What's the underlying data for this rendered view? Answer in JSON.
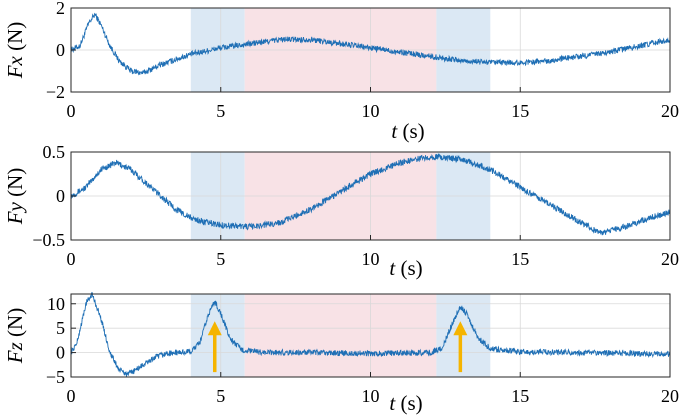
{
  "chart_data": [
    {
      "type": "line",
      "id": "fx",
      "ylabel": "Fx (N)",
      "ylabel_var": "Fx",
      "ylabel_unit": "(N)",
      "xlabel": "t (s)",
      "xlabel_var": "t",
      "xlabel_unit": "(s)",
      "xlim": [
        0,
        20
      ],
      "ylim": [
        -2,
        2
      ],
      "xticks": [
        "0",
        "5",
        "10",
        "15",
        "20"
      ],
      "yticks": [
        "2",
        "0",
        "-2"
      ],
      "grid": true,
      "series": [
        {
          "color": "#1f6fb5",
          "points": [
            [
              0,
              0
            ],
            [
              0.3,
              0.2
            ],
            [
              0.6,
              1.3
            ],
            [
              0.8,
              1.7
            ],
            [
              1.0,
              1.2
            ],
            [
              1.3,
              0.2
            ],
            [
              1.6,
              -0.5
            ],
            [
              2.0,
              -1.0
            ],
            [
              2.4,
              -1.1
            ],
            [
              3.0,
              -0.7
            ],
            [
              4.0,
              -0.2
            ],
            [
              5.0,
              0.1
            ],
            [
              6.0,
              0.3
            ],
            [
              7.0,
              0.5
            ],
            [
              8.0,
              0.5
            ],
            [
              9.0,
              0.3
            ],
            [
              10.0,
              0.1
            ],
            [
              11.0,
              -0.1
            ],
            [
              12.0,
              -0.3
            ],
            [
              13.0,
              -0.5
            ],
            [
              14.0,
              -0.6
            ],
            [
              15.0,
              -0.6
            ],
            [
              16.0,
              -0.5
            ],
            [
              17.0,
              -0.3
            ],
            [
              18.0,
              -0.1
            ],
            [
              19.0,
              0.2
            ],
            [
              20.0,
              0.5
            ]
          ]
        }
      ]
    },
    {
      "type": "line",
      "id": "fy",
      "ylabel": "Fy (N)",
      "ylabel_var": "Fy",
      "ylabel_unit": "(N)",
      "xlabel": "t (s)",
      "xlabel_var": "t",
      "xlabel_unit": "(s)",
      "xlim": [
        0,
        20
      ],
      "ylim": [
        -0.5,
        0.5
      ],
      "xticks": [
        "0",
        "5",
        "10",
        "15",
        "20"
      ],
      "yticks": [
        "0.5",
        "0",
        "-0.5"
      ],
      "grid": true,
      "series": [
        {
          "color": "#1f6fb5",
          "points": [
            [
              0,
              0
            ],
            [
              0.5,
              0.1
            ],
            [
              1.0,
              0.3
            ],
            [
              1.5,
              0.38
            ],
            [
              2.0,
              0.3
            ],
            [
              2.5,
              0.15
            ],
            [
              3.0,
              0
            ],
            [
              3.5,
              -0.15
            ],
            [
              4.0,
              -0.25
            ],
            [
              4.5,
              -0.3
            ],
            [
              5.0,
              -0.33
            ],
            [
              6.0,
              -0.35
            ],
            [
              7.0,
              -0.3
            ],
            [
              8.0,
              -0.15
            ],
            [
              9.0,
              0.05
            ],
            [
              10.0,
              0.25
            ],
            [
              11.0,
              0.38
            ],
            [
              12.0,
              0.45
            ],
            [
              13.0,
              0.42
            ],
            [
              14.0,
              0.3
            ],
            [
              15.0,
              0.1
            ],
            [
              16.0,
              -0.1
            ],
            [
              17.0,
              -0.3
            ],
            [
              17.7,
              -0.42
            ],
            [
              18.5,
              -0.35
            ],
            [
              19.3,
              -0.25
            ],
            [
              20.0,
              -0.18
            ]
          ]
        }
      ]
    },
    {
      "type": "line",
      "id": "fz",
      "ylabel": "Fz (N)",
      "ylabel_var": "Fz",
      "ylabel_unit": "(N)",
      "xlabel": "t (s)",
      "xlabel_var": "t",
      "xlabel_unit": "(s)",
      "xlim": [
        0,
        20
      ],
      "ylim": [
        -5,
        12
      ],
      "xticks": [
        "0",
        "5",
        "10",
        "15",
        "20"
      ],
      "yticks": [
        "10",
        "5",
        "0",
        "-5"
      ],
      "grid": true,
      "annotations": [
        {
          "type": "arrow",
          "color": "#f5b400",
          "x": 4.8,
          "y_from": -4,
          "y_to": 6
        },
        {
          "type": "arrow",
          "color": "#f5b400",
          "x": 13.0,
          "y_from": -4,
          "y_to": 6
        }
      ],
      "series": [
        {
          "color": "#1f6fb5",
          "points": [
            [
              0,
              0
            ],
            [
              0.2,
              2
            ],
            [
              0.5,
              10
            ],
            [
              0.7,
              12
            ],
            [
              1.0,
              7
            ],
            [
              1.3,
              0
            ],
            [
              1.6,
              -3.5
            ],
            [
              1.9,
              -4.5
            ],
            [
              2.3,
              -3
            ],
            [
              2.8,
              -1
            ],
            [
              3.2,
              -0.2
            ],
            [
              4.0,
              0.2
            ],
            [
              4.3,
              2
            ],
            [
              4.6,
              8
            ],
            [
              4.8,
              10.5
            ],
            [
              5.0,
              8
            ],
            [
              5.3,
              3
            ],
            [
              5.7,
              0.5
            ],
            [
              6.5,
              0
            ],
            [
              8.0,
              0
            ],
            [
              10.0,
              -0.2
            ],
            [
              12.0,
              0
            ],
            [
              12.4,
              1
            ],
            [
              12.8,
              7
            ],
            [
              13.0,
              9.5
            ],
            [
              13.2,
              8
            ],
            [
              13.6,
              3
            ],
            [
              14.0,
              0.8
            ],
            [
              15.0,
              0.2
            ],
            [
              17.0,
              0
            ],
            [
              20.0,
              -0.3
            ]
          ]
        }
      ]
    }
  ],
  "shading": [
    {
      "x0": 4.0,
      "x1": 5.8,
      "color": "#dbe8f4"
    },
    {
      "x0": 5.8,
      "x1": 12.2,
      "color": "#f8e2e6"
    },
    {
      "x0": 12.2,
      "x1": 14.0,
      "color": "#dbe8f4"
    }
  ]
}
